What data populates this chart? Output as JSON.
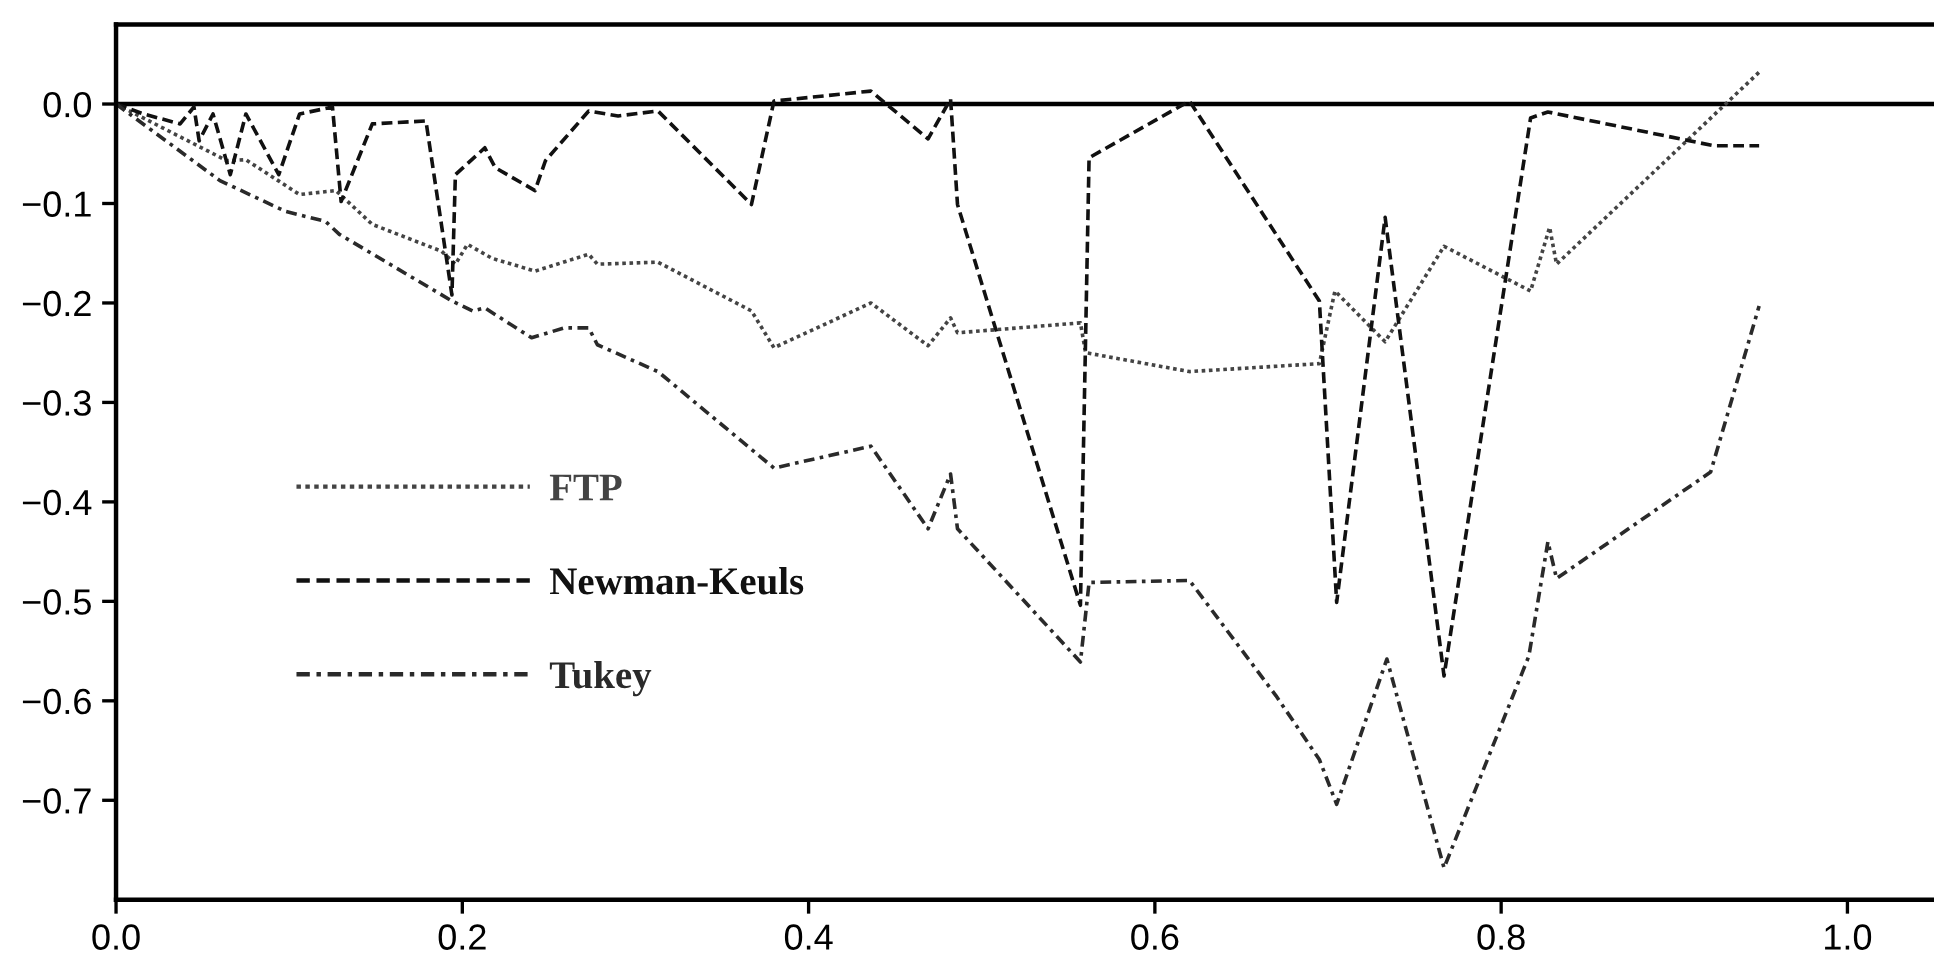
{
  "chart_data": {
    "type": "line",
    "xlim": [
      0,
      1.05
    ],
    "ylim": [
      -0.8,
      0.08
    ],
    "xticks": [
      {
        "value": 0,
        "label": "0.0"
      },
      0.2,
      0.4,
      0.6,
      0.8,
      {
        "value": 1,
        "label": "1.0"
      }
    ],
    "yticks": [
      {
        "value": -0.7,
        "label": "−0.7"
      },
      {
        "value": -0.6,
        "label": "−0.6"
      },
      {
        "value": -0.5,
        "label": "−0.5"
      },
      {
        "value": -0.4,
        "label": "−0.4"
      },
      {
        "value": -0.3,
        "label": "−0.3"
      },
      {
        "value": -0.2,
        "label": "−0.2"
      },
      {
        "value": -0.1,
        "label": "−0.1"
      },
      {
        "value": 0,
        "label": "0.0"
      }
    ],
    "grid": false,
    "legend": "left",
    "marker": "none",
    "ref_lines": [
      {
        "axis": "y",
        "value": 0,
        "color": "#000000",
        "line_style": "solid"
      }
    ],
    "series": [
      {
        "name": "FTP",
        "color": "#444444",
        "line_style": "dotted",
        "x": [
          0,
          0.064,
          0.075,
          0.106,
          0.127,
          0.148,
          0.188,
          0.196,
          0.203,
          0.217,
          0.242,
          0.273,
          0.278,
          0.313,
          0.367,
          0.38,
          0.436,
          0.469,
          0.482,
          0.486,
          0.557,
          0.56,
          0.62,
          0.695,
          0.704,
          0.733,
          0.767,
          0.817,
          0.828,
          0.832,
          0.949
        ],
        "values": [
          0,
          -0.057,
          -0.056,
          -0.091,
          -0.087,
          -0.121,
          -0.148,
          -0.161,
          -0.141,
          -0.155,
          -0.168,
          -0.151,
          -0.161,
          -0.159,
          -0.208,
          -0.245,
          -0.2,
          -0.243,
          -0.215,
          -0.23,
          -0.22,
          -0.25,
          -0.269,
          -0.261,
          -0.188,
          -0.239,
          -0.143,
          -0.188,
          -0.124,
          -0.161,
          0.032
        ]
      },
      {
        "name": "Newman-Keuls",
        "color": "#111111",
        "line_style": "dashed",
        "x": [
          0,
          0.016,
          0.037,
          0.045,
          0.048,
          0.056,
          0.066,
          0.075,
          0.094,
          0.106,
          0.125,
          0.13,
          0.148,
          0.179,
          0.194,
          0.196,
          0.213,
          0.219,
          0.242,
          0.248,
          0.273,
          0.29,
          0.313,
          0.367,
          0.38,
          0.436,
          0.469,
          0.482,
          0.486,
          0.557,
          0.562,
          0.62,
          0.695,
          0.705,
          0.733,
          0.767,
          0.817,
          0.827,
          0.923,
          0.949
        ],
        "values": [
          0,
          -0.01,
          -0.02,
          -0.003,
          -0.037,
          -0.01,
          -0.071,
          -0.01,
          -0.071,
          -0.01,
          -0.003,
          -0.098,
          -0.02,
          -0.017,
          -0.192,
          -0.071,
          -0.044,
          -0.064,
          -0.087,
          -0.057,
          -0.007,
          -0.012,
          -0.007,
          -0.101,
          0.003,
          0.013,
          -0.035,
          0.005,
          -0.101,
          -0.504,
          -0.054,
          0.003,
          -0.198,
          -0.501,
          -0.114,
          -0.575,
          -0.014,
          -0.008,
          -0.042,
          -0.042
        ]
      },
      {
        "name": "Tukey",
        "color": "#2a2a2a",
        "line_style": "dashdot",
        "x": [
          0,
          0.06,
          0.098,
          0.121,
          0.129,
          0.194,
          0.206,
          0.213,
          0.24,
          0.259,
          0.273,
          0.278,
          0.313,
          0.38,
          0.436,
          0.469,
          0.482,
          0.486,
          0.557,
          0.562,
          0.62,
          0.67,
          0.695,
          0.705,
          0.734,
          0.767,
          0.816,
          0.827,
          0.832,
          0.921,
          0.949
        ],
        "values": [
          0,
          -0.077,
          -0.108,
          -0.118,
          -0.131,
          -0.198,
          -0.208,
          -0.205,
          -0.235,
          -0.225,
          -0.225,
          -0.242,
          -0.269,
          -0.366,
          -0.344,
          -0.427,
          -0.372,
          -0.427,
          -0.561,
          -0.481,
          -0.479,
          -0.595,
          -0.659,
          -0.704,
          -0.558,
          -0.768,
          -0.555,
          -0.44,
          -0.477,
          -0.37,
          -0.203
        ]
      }
    ]
  }
}
